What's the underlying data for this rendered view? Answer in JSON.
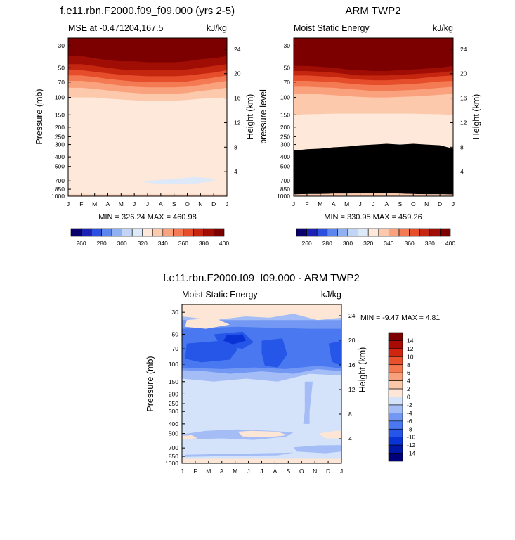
{
  "panels": [
    {
      "title": "f.e11.rbn.F2000.f09_f09.000 (yrs 2-5)",
      "left_label": "MSE at -0.471204,167.5",
      "right_label": "kJ/kg",
      "ylabel_left": "Pressure (mb)",
      "ylabel_right": "Height (km)",
      "minmax": "MIN = 326.24 MAX = 460.98"
    },
    {
      "title": "ARM TWP2",
      "left_label": "Moist Static Energy",
      "right_label": "kJ/kg",
      "ylabel_left": "pressure level",
      "ylabel_right": "Height (km)",
      "minmax": "MIN = 330.95 MAX = 459.26"
    },
    {
      "title": "f.e11.rbn.F2000.f09_f09.000 - ARM TWP2",
      "left_label": "Moist Static Energy",
      "right_label": "kJ/kg",
      "ylabel_left": "Pressure (mb)",
      "ylabel_right": "Height (km)",
      "minmax": "MIN =  -9.47 MAX =   4.81"
    }
  ],
  "colors": {
    "abs_scale": [
      "#08006b",
      "#1b22b3",
      "#2d4fdf",
      "#5a86ee",
      "#8fb1f4",
      "#c1d6f6",
      "#dde9f8",
      "#fde8d9",
      "#fcc9ad",
      "#f9a27d",
      "#f47a53",
      "#e54d2b",
      "#c5260f",
      "#a00d05",
      "#7c0000"
    ],
    "diff_scale": [
      "#00007a",
      "#0018a8",
      "#0a33d6",
      "#2556e8",
      "#4a78f0",
      "#7298f3",
      "#a4bdf6",
      "#d4e3fa",
      "#fde6d6",
      "#fbc7ab",
      "#f8a07b",
      "#f3784f",
      "#e9502c",
      "#d0260f",
      "#a80b02",
      "#7c0000"
    ]
  },
  "chart_data": [
    {
      "type": "heatmap",
      "title": "f.e11.rbn.F2000.f09_f09.000 (yrs 2-5)",
      "x": [
        "J",
        "F",
        "M",
        "A",
        "M",
        "J",
        "J",
        "A",
        "S",
        "O",
        "N",
        "D",
        "J"
      ],
      "y_pressure_mb": [
        1000,
        850,
        700,
        500,
        400,
        300,
        250,
        200,
        150,
        100,
        70,
        50,
        30
      ],
      "y_height_km": [
        4,
        8,
        12,
        16,
        20,
        24
      ],
      "ylabel": "Pressure (mb)",
      "y2label": "Height (km)",
      "units": "kJ/kg",
      "colorbar_levels": [
        260,
        270,
        280,
        290,
        300,
        310,
        320,
        330,
        340,
        350,
        360,
        370,
        380,
        390,
        400
      ],
      "colorbar_labels": [
        "260",
        "280",
        "300",
        "320",
        "340",
        "360",
        "380",
        "400"
      ],
      "contour_boundaries_mb": [
        {
          "above_level": 400,
          "y": [
            38,
            38,
            40,
            42,
            43,
            43,
            44,
            44,
            44,
            43,
            41,
            40,
            38
          ]
        },
        {
          "above_level": 390,
          "y": [
            46,
            46,
            48,
            50,
            52,
            53,
            53,
            53,
            53,
            52,
            50,
            48,
            46
          ]
        },
        {
          "above_level": 380,
          "y": [
            53,
            53,
            55,
            57,
            59,
            60,
            61,
            61,
            61,
            60,
            58,
            56,
            53
          ]
        },
        {
          "above_level": 370,
          "y": [
            60,
            60,
            62,
            65,
            67,
            69,
            70,
            70,
            70,
            69,
            66,
            63,
            60
          ]
        },
        {
          "above_level": 360,
          "y": [
            68,
            68,
            70,
            73,
            76,
            78,
            79,
            79,
            79,
            78,
            75,
            71,
            68
          ]
        },
        {
          "above_level": 350,
          "y": [
            80,
            80,
            82,
            85,
            88,
            90,
            92,
            92,
            92,
            90,
            86,
            83,
            80
          ]
        },
        {
          "above_level": 340,
          "y": [
            100,
            100,
            100,
            103,
            105,
            107,
            108,
            108,
            108,
            106,
            103,
            101,
            100
          ]
        },
        {
          "above_level": 330,
          "y": [
            315,
            305,
            300,
            300,
            300,
            295,
            295,
            290,
            282,
            270,
            275,
            290,
            315
          ]
        },
        {
          "below_level": 320,
          "region": "J-N",
          "p_range": [
            620,
            790
          ]
        }
      ],
      "minmax": "MIN = 326.24 MAX = 460.98"
    },
    {
      "type": "heatmap",
      "title": "ARM TWP2",
      "x": [
        "J",
        "F",
        "M",
        "A",
        "M",
        "J",
        "J",
        "A",
        "S",
        "O",
        "N",
        "D",
        "J"
      ],
      "y_pressure_mb": [
        1000,
        850,
        700,
        500,
        400,
        300,
        250,
        200,
        150,
        100,
        70,
        50,
        30
      ],
      "y_height_km": [
        4,
        8,
        12,
        16,
        20,
        24
      ],
      "ylabel": "pressure level",
      "y2label": "Height (km)",
      "units": "kJ/kg",
      "colorbar_levels": [
        260,
        270,
        280,
        290,
        300,
        310,
        320,
        330,
        340,
        350,
        360,
        370,
        380,
        390,
        400
      ],
      "colorbar_labels": [
        "260",
        "280",
        "300",
        "320",
        "340",
        "360",
        "380",
        "400"
      ],
      "contour_boundaries_mb": [
        {
          "above_level": 400,
          "y": [
            48,
            48,
            49,
            50,
            52,
            53,
            54,
            54,
            53,
            52,
            51,
            50,
            48
          ]
        },
        {
          "above_level": 390,
          "y": [
            54,
            54,
            55,
            56,
            58,
            60,
            60,
            60,
            59,
            58,
            57,
            56,
            54
          ]
        },
        {
          "above_level": 380,
          "y": [
            60,
            60,
            61,
            62,
            64,
            66,
            67,
            67,
            66,
            65,
            63,
            61,
            60
          ]
        },
        {
          "above_level": 370,
          "y": [
            68,
            68,
            69,
            70,
            72,
            74,
            75,
            75,
            74,
            73,
            71,
            69,
            68
          ]
        },
        {
          "above_level": 360,
          "y": [
            78,
            78,
            79,
            80,
            82,
            84,
            86,
            86,
            85,
            84,
            82,
            80,
            78
          ]
        },
        {
          "above_level": 350,
          "y": [
            92,
            92,
            93,
            95,
            97,
            99,
            100,
            100,
            99,
            98,
            96,
            94,
            92
          ]
        },
        {
          "above_level": 340,
          "y": [
            150,
            148,
            147,
            146,
            146,
            146,
            146,
            146,
            146,
            146,
            147,
            148,
            150
          ]
        },
        {
          "above_level": 330,
          "y": [
            345,
            335,
            330,
            320,
            315,
            305,
            300,
            295,
            300,
            295,
            300,
            305,
            330
          ]
        },
        {
          "above_level": 320,
          "y": [
            960,
            950,
            950,
            940,
            940,
            935,
            930,
            935,
            940,
            950,
            955,
            955,
            960
          ]
        }
      ],
      "minmax": "MIN = 330.95 MAX = 459.26"
    },
    {
      "type": "heatmap",
      "title": "f.e11.rbn.F2000.f09_f09.000 - ARM TWP2",
      "x": [
        "J",
        "F",
        "M",
        "A",
        "M",
        "J",
        "J",
        "A",
        "S",
        "O",
        "N",
        "D",
        "J"
      ],
      "y_pressure_mb": [
        1000,
        850,
        700,
        500,
        400,
        300,
        250,
        200,
        150,
        100,
        70,
        50,
        30
      ],
      "y_height_km": [
        4,
        8,
        12,
        16,
        20,
        24
      ],
      "ylabel": "Pressure (mb)",
      "y2label": "Height (km)",
      "units": "kJ/kg",
      "colorbar_levels": [
        -14,
        -12,
        -10,
        -8,
        -6,
        -4,
        -2,
        0,
        2,
        4,
        6,
        8,
        10,
        12,
        14
      ],
      "colorbar_labels": [
        "-14",
        "-12",
        "-10",
        "-8",
        "-6",
        "-4",
        "-2",
        "0",
        "2",
        "4",
        "6",
        "8",
        "10",
        "12",
        "14"
      ],
      "features": [
        {
          "value_range": [
            0,
            2
          ],
          "region": "near top, J-J",
          "p_range": [
            28,
            38
          ]
        },
        {
          "value_range": [
            -4,
            -2
          ],
          "region": "upper band",
          "p_range": [
            36,
            48
          ]
        },
        {
          "value_range": [
            -8,
            -6
          ],
          "region": "stratospheric band",
          "p_range": [
            48,
            120
          ]
        },
        {
          "value_range": [
            -10,
            -8
          ],
          "region": "Apr",
          "p_range": [
            52,
            68
          ]
        },
        {
          "value_range": [
            -10,
            -8
          ],
          "region": "Feb-Mar",
          "p_range": [
            66,
            92
          ]
        },
        {
          "value_range": [
            -10,
            -8
          ],
          "region": "Jul-Aug",
          "p_range": [
            58,
            110
          ]
        },
        {
          "value_range": [
            -2,
            0
          ],
          "region": "troposphere",
          "p_range": [
            150,
            1000
          ]
        },
        {
          "value_range": [
            0,
            2
          ],
          "region": "mid-level patches",
          "p_range": [
            470,
            600
          ]
        },
        {
          "value_range": [
            -4,
            -2
          ],
          "region": "low-level patch Oct-Dec",
          "p_range": [
            680,
            850
          ]
        }
      ],
      "minmax": "MIN =  -9.47 MAX =   4.81"
    }
  ]
}
